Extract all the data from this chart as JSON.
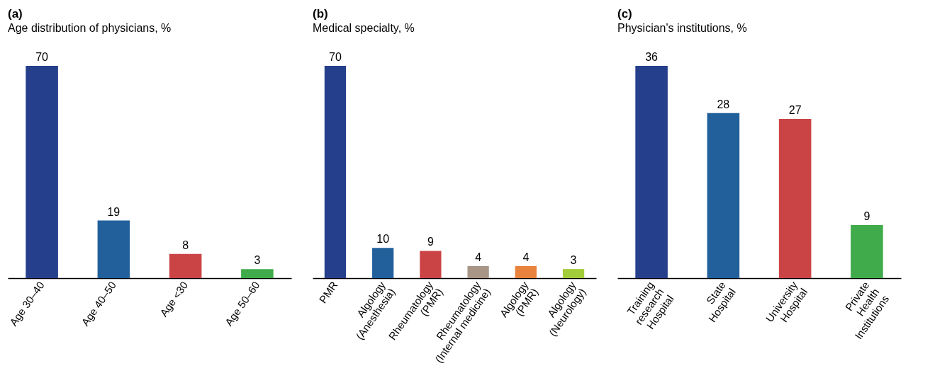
{
  "chart_data": [
    {
      "type": "bar",
      "title": "(a)",
      "subtitle": "Age distribution of physicians, %",
      "categories": [
        "Age 30–40",
        "Age 40–50",
        "Age <30",
        "Age 50–60"
      ],
      "values": [
        70,
        19,
        8,
        3
      ],
      "colors": [
        "#263f8c",
        "#22609c",
        "#cb4445",
        "#40ab4a"
      ],
      "data_labels": true
    },
    {
      "type": "bar",
      "title": "(b)",
      "subtitle": "Medical specialty, %",
      "categories": [
        "PMR",
        "Algology\n(Anesthesia)",
        "Rheumatology\n(PMR)",
        "Rheumatology\n(Internal medicine)",
        "Algology\n(PMR)",
        "Algology\n(Neurology)"
      ],
      "values": [
        70,
        10,
        9,
        4,
        4,
        3
      ],
      "colors": [
        "#263f8c",
        "#22609c",
        "#cb4445",
        "#a89586",
        "#e8823c",
        "#a3cc3a"
      ],
      "data_labels": true
    },
    {
      "type": "bar",
      "title": "(c)",
      "subtitle": "Physician's institutions, %",
      "categories": [
        "Training\nresearch\nHospital",
        "State\nHospital",
        "University\nHospital",
        "Private\nHealth\nInstitutions"
      ],
      "values": [
        36,
        28,
        27,
        9
      ],
      "colors": [
        "#263f8c",
        "#22609c",
        "#cb4445",
        "#40ab4a"
      ],
      "data_labels": true
    }
  ]
}
